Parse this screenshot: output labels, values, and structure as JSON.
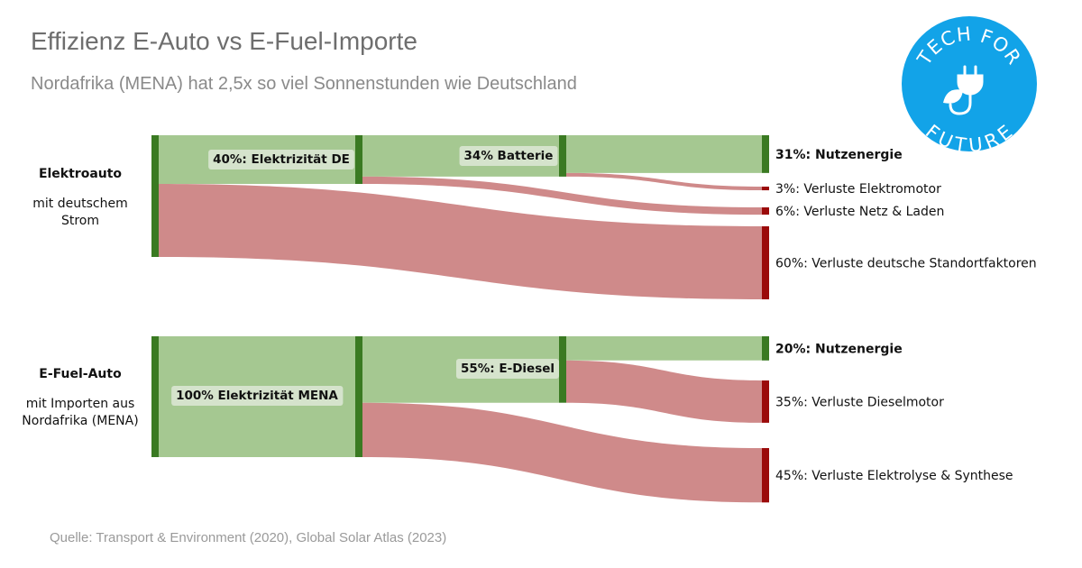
{
  "title": "Effizienz E-Auto vs E-Fuel-Importe",
  "subtitle": "Nordafrika (MENA) hat 2,5x so viel Sonnenstunden wie Deutschland",
  "source": "Quelle: Transport & Environment (2020), Global Solar Atlas (2023)",
  "badge": {
    "top_text": "TECH FOR",
    "bottom_text": "FUTURE",
    "icon": "plug-leaf-icon",
    "color": "#12a3e8"
  },
  "colors": {
    "node": "#3a7a22",
    "flow_green": "#a5c891",
    "flow_red": "#cf8a8a",
    "loss_node": "#9b0a0a"
  },
  "chart_data": [
    {
      "type": "sankey",
      "source_label": "Elektroauto",
      "source_sublabel": [
        "mit deutschem",
        "Strom"
      ],
      "stages": [
        {
          "label": "40%: Elektrizität DE",
          "value": 40
        },
        {
          "label": "34% Batterie",
          "value": 34
        },
        {
          "label": "31%: Nutzenergie",
          "value": 31
        }
      ],
      "outputs": [
        {
          "label": "31%: Nutzenergie",
          "value": 31,
          "kind": "useful",
          "bold": true
        },
        {
          "label": "3%: Verluste Elektromotor",
          "value": 3,
          "kind": "loss"
        },
        {
          "label": "6%: Verluste Netz & Laden",
          "value": 6,
          "kind": "loss"
        },
        {
          "label": "60%: Verluste deutsche Standortfaktoren",
          "value": 60,
          "kind": "loss"
        }
      ]
    },
    {
      "type": "sankey",
      "source_label": "E-Fuel-Auto",
      "source_sublabel": [
        "mit Importen aus",
        "Nordafrika (MENA)"
      ],
      "stages": [
        {
          "label": "100% Elektrizität MENA",
          "value": 100
        },
        {
          "label": "55%: E-Diesel",
          "value": 55
        },
        {
          "label": "20%: Nutzenergie",
          "value": 20
        }
      ],
      "outputs": [
        {
          "label": "20%: Nutzenergie",
          "value": 20,
          "kind": "useful",
          "bold": true
        },
        {
          "label": "35%: Verluste Dieselmotor",
          "value": 35,
          "kind": "loss"
        },
        {
          "label": "45%: Verluste Elektrolyse & Synthese",
          "value": 45,
          "kind": "loss"
        }
      ]
    }
  ]
}
